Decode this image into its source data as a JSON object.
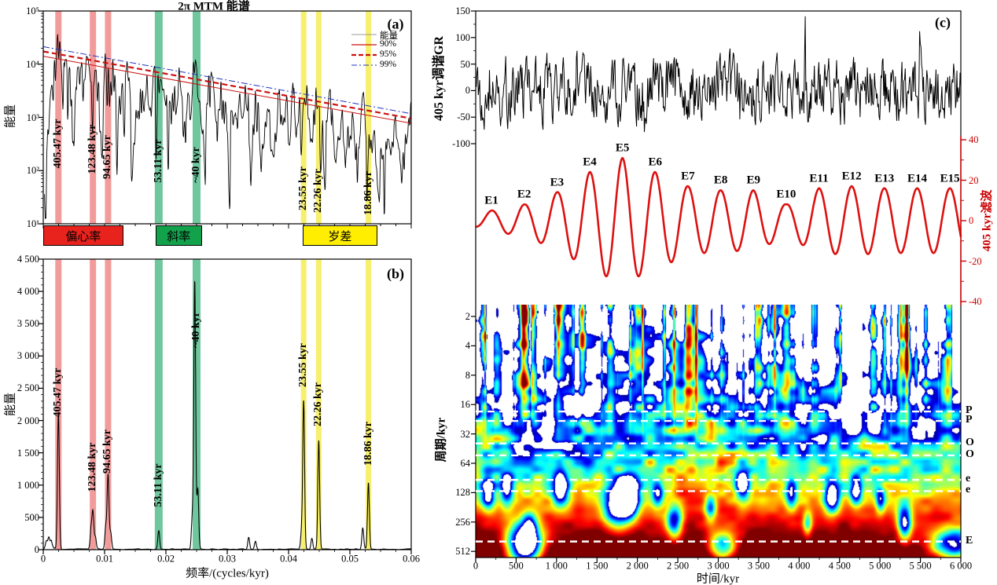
{
  "colors": {
    "box_red": "#e8231d",
    "box_green": "#12a24b",
    "box_yellow": "#ffee00",
    "band_pink": "#f29b9b",
    "band_green": "#6fc79d",
    "band_yellow": "#f7ef6e",
    "curve_red": "#dd1111",
    "conf_red": "#cc1111",
    "conf_blue": "#2233bb",
    "axis_red": "#cc0000",
    "spectrum_black": "#000000",
    "wavelet_dark_red": "#8b0000"
  },
  "panel_a": {
    "corner_label": "(a)",
    "title": "2π MTM 能谱",
    "ylabel": "能量",
    "yticks": [
      "10⁵",
      "10⁴",
      "10³",
      "10²",
      "10¹"
    ],
    "legend": [
      {
        "label": "能量",
        "style": "gray-solid-line"
      },
      {
        "label": "90%",
        "style": "red-solid-line"
      },
      {
        "label": "95%",
        "style": "red-dashed-line"
      },
      {
        "label": "99%",
        "style": "blue-dashdot-line"
      }
    ],
    "bands": [
      {
        "label": "405.47 kyr",
        "freq": 0.00247,
        "group": "eccentricity"
      },
      {
        "label": "123.48 kyr",
        "freq": 0.0081,
        "group": "eccentricity"
      },
      {
        "label": "94.65 kyr",
        "freq": 0.01057,
        "group": "eccentricity"
      },
      {
        "label": "53.11 kyr",
        "freq": 0.01883,
        "group": "obliquity"
      },
      {
        "label": "~40 kyr",
        "freq": 0.025,
        "group": "obliquity"
      },
      {
        "label": "23.55 kyr",
        "freq": 0.04246,
        "group": "precession"
      },
      {
        "label": "22.26 kyr",
        "freq": 0.04492,
        "group": "precession"
      },
      {
        "label": "18.86 kyr",
        "freq": 0.05302,
        "group": "precession"
      }
    ]
  },
  "band_row": [
    {
      "label": "偏心率",
      "f1": 0.0,
      "f2": 0.0128,
      "color_key": "box_red"
    },
    {
      "label": "斜率",
      "f1": 0.0183,
      "f2": 0.0256,
      "color_key": "box_green"
    },
    {
      "label": "岁差",
      "f1": 0.0423,
      "f2": 0.0542,
      "color_key": "box_yellow"
    }
  ],
  "panel_b": {
    "corner_label": "(b)",
    "ylabel": "能量",
    "xlabel": "频率/(cycles/kyr)",
    "yticks": [
      "4 500",
      "4 000",
      "3 500",
      "3 000",
      "2 500",
      "2 000",
      "1 500",
      "1 000",
      "500",
      "0"
    ],
    "xticks": [
      "0",
      "0.01",
      "0.02",
      "0.03",
      "0.04",
      "0.05",
      "0.06"
    ]
  },
  "panel_c": {
    "corner_label": "(c)",
    "gr_axis": {
      "label": "405 kyr调谐GR",
      "ticks": [
        "150",
        "100",
        "50",
        "0",
        "-50",
        "-100"
      ]
    },
    "filter_axis": {
      "label": "405 kyr滤波",
      "ticks": [
        "40",
        "20",
        "0",
        "-20",
        "-40"
      ]
    },
    "wavelet": {
      "ylabel": "周期/kyr",
      "yticks": [
        "2",
        "4",
        "8",
        "16",
        "32",
        "64",
        "128",
        "256",
        "512"
      ],
      "xlabel": "时间/kyr",
      "xticks": [
        "0",
        "500",
        "1 000",
        "1 500",
        "2 000",
        "2 500",
        "3 000",
        "3 500",
        "4 000",
        "4 500",
        "5 000",
        "5 500",
        "6 000"
      ]
    }
  },
  "chart_data": [
    {
      "panel": "a",
      "type": "line",
      "title": "2π MTM 能谱",
      "xlabel": "频率/(cycles/kyr)",
      "ylabel": "能量",
      "yscale": "log",
      "xlim": [
        0,
        0.06
      ],
      "ylim": [
        10,
        100000
      ],
      "legend": [
        "能量",
        "90%",
        "95%",
        "99%"
      ],
      "legend_position": "top-right",
      "highlighted_peaks": [
        {
          "period_label": "405.47 kyr",
          "freq": 0.00247,
          "band": "偏心率"
        },
        {
          "period_label": "123.48 kyr",
          "freq": 0.0081,
          "band": "偏心率"
        },
        {
          "period_label": "94.65 kyr",
          "freq": 0.01057,
          "band": "偏心率"
        },
        {
          "period_label": "53.11 kyr",
          "freq": 0.01883,
          "band": "斜率"
        },
        {
          "period_label": "~40 kyr",
          "freq": 0.025,
          "band": "斜率"
        },
        {
          "period_label": "23.55 kyr",
          "freq": 0.04246,
          "band": "岁差"
        },
        {
          "period_label": "22.26 kyr",
          "freq": 0.04492,
          "band": "岁差"
        },
        {
          "period_label": "18.86 kyr",
          "freq": 0.05302,
          "band": "岁差"
        }
      ],
      "confidence_lines_log10_at_f0_f006": {
        "p90": [
          4.15,
          2.89
        ],
        "p95": [
          4.24,
          2.98
        ],
        "p99": [
          4.33,
          3.07
        ]
      }
    },
    {
      "panel": "b",
      "type": "line",
      "xlabel": "频率/(cycles/kyr)",
      "ylabel": "能量",
      "xlim": [
        0,
        0.06
      ],
      "ylim": [
        0,
        4500
      ],
      "peaks": [
        {
          "period_label": "405.47 kyr",
          "freq": 0.00247,
          "power": 2100
        },
        {
          "period_label": "123.48 kyr",
          "freq": 0.0081,
          "power": 560
        },
        {
          "period_label": "94.65 kyr",
          "freq": 0.01057,
          "power": 1150
        },
        {
          "period_label": "53.11 kyr",
          "freq": 0.01883,
          "power": 290
        },
        {
          "period_label": "~40 kyr",
          "freq": 0.0247,
          "power": 4150
        },
        {
          "period_label": "23.55 kyr",
          "freq": 0.04246,
          "power": 2300
        },
        {
          "period_label": "22.26 kyr",
          "freq": 0.04492,
          "power": 1680
        },
        {
          "period_label": "18.86 kyr",
          "freq": 0.05302,
          "power": 1030
        }
      ],
      "minor_peaks": [
        {
          "freq": 0.0005,
          "power": 110
        },
        {
          "freq": 0.0009,
          "power": 170
        },
        {
          "freq": 0.0013,
          "power": 130
        },
        {
          "freq": 0.0078,
          "power": 300
        },
        {
          "freq": 0.0085,
          "power": 190
        },
        {
          "freq": 0.0102,
          "power": 340
        },
        {
          "freq": 0.011,
          "power": 260
        },
        {
          "freq": 0.0243,
          "power": 480
        },
        {
          "freq": 0.0252,
          "power": 920
        },
        {
          "freq": 0.0335,
          "power": 190
        },
        {
          "freq": 0.0346,
          "power": 120
        },
        {
          "freq": 0.0421,
          "power": 240
        },
        {
          "freq": 0.0438,
          "power": 170
        },
        {
          "freq": 0.0521,
          "power": 330
        }
      ]
    },
    {
      "panel": "c",
      "type": "line+heatmap",
      "xlabel": "时间/kyr",
      "xlim": [
        0,
        6000
      ],
      "series": [
        {
          "name": "405 kyr调谐GR",
          "ylim": [
            -100,
            150
          ],
          "style": "black-noisy-line",
          "spike": {
            "t": 4075,
            "value": 140
          }
        },
        {
          "name": "405 kyr滤波",
          "ylim": [
            -40,
            40
          ],
          "style": "red-smooth-line",
          "period_kyr": 405,
          "cycle_peaks": [
            {
              "label": "E1",
              "t": 195,
              "amp": 5
            },
            {
              "label": "E2",
              "t": 600,
              "amp": 8
            },
            {
              "label": "E3",
              "t": 1005,
              "amp": 14
            },
            {
              "label": "E4",
              "t": 1410,
              "amp": 24
            },
            {
              "label": "E5",
              "t": 1815,
              "amp": 31
            },
            {
              "label": "E6",
              "t": 2220,
              "amp": 24
            },
            {
              "label": "E7",
              "t": 2625,
              "amp": 17
            },
            {
              "label": "E8",
              "t": 3030,
              "amp": 15
            },
            {
              "label": "E9",
              "t": 3435,
              "amp": 15
            },
            {
              "label": "E10",
              "t": 3840,
              "amp": 8
            },
            {
              "label": "E11",
              "t": 4245,
              "amp": 16
            },
            {
              "label": "E12",
              "t": 4650,
              "amp": 17
            },
            {
              "label": "E13",
              "t": 5055,
              "amp": 16
            },
            {
              "label": "E14",
              "t": 5460,
              "amp": 16
            },
            {
              "label": "E15",
              "t": 5865,
              "amp": 16
            }
          ]
        }
      ],
      "wavelet": {
        "type": "heatmap",
        "colormap": "jet-on-white",
        "ylabel": "周期/kyr",
        "yscale": "log2",
        "yticks": [
          2,
          4,
          8,
          16,
          32,
          64,
          128,
          256,
          512
        ],
        "dashed_period_lines": [
          {
            "label": "P",
            "period": 18.86
          },
          {
            "label": "P",
            "period": 23.55
          },
          {
            "label": "O",
            "period": 40.0
          },
          {
            "label": "O",
            "period": 53.11
          },
          {
            "label": "e",
            "period": 94.65
          },
          {
            "label": "e",
            "period": 123.48
          },
          {
            "label": "E",
            "period": 405.47
          }
        ]
      }
    }
  ]
}
